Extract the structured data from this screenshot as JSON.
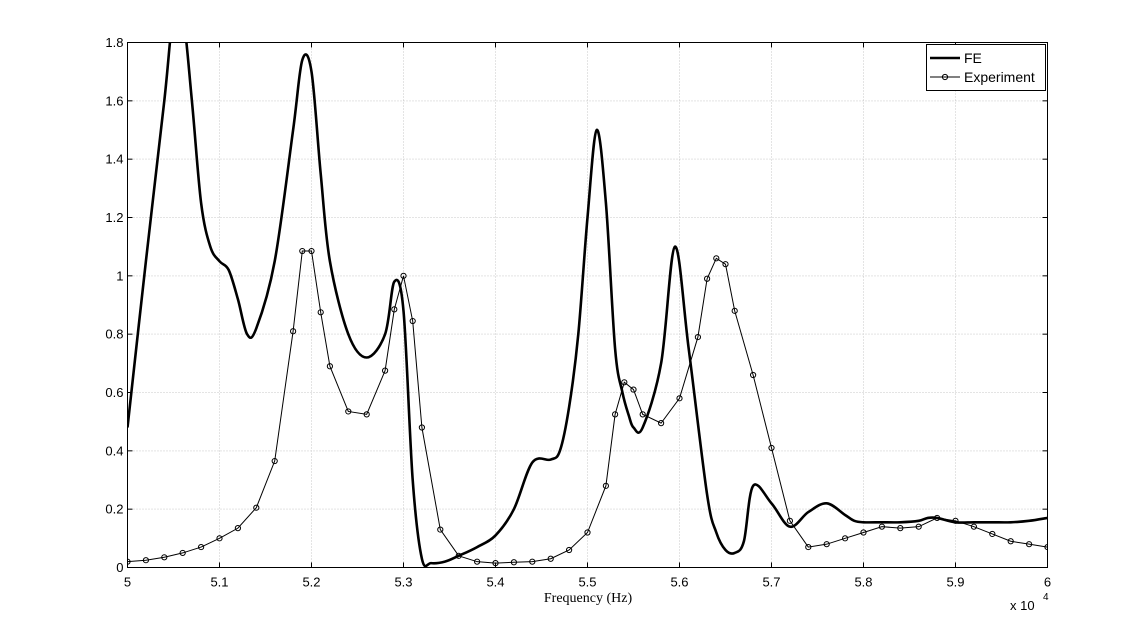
{
  "chart_data": {
    "type": "line",
    "title": "",
    "xlabel": "Frequency (Hz)",
    "ylabel": "",
    "x_multiplier_label": "x 10",
    "x_multiplier_exponent": "4",
    "xlim": [
      50000,
      60000
    ],
    "ylim": [
      0,
      1.8
    ],
    "grid": true,
    "legend_position": "top-right",
    "x_ticks": [
      50000,
      51000,
      52000,
      53000,
      54000,
      55000,
      56000,
      57000,
      58000,
      59000,
      60000
    ],
    "x_tick_labels": [
      "5",
      "5.1",
      "5.2",
      "5.3",
      "5.4",
      "5.5",
      "5.6",
      "5.7",
      "5.8",
      "5.9",
      "6"
    ],
    "y_ticks": [
      0,
      0.2,
      0.4,
      0.6,
      0.8,
      1,
      1.2,
      1.4,
      1.6,
      1.8
    ],
    "y_tick_labels": [
      "0",
      "0.2",
      "0.4",
      "0.6",
      "0.8",
      "1",
      "1.2",
      "1.4",
      "1.6",
      "1.8"
    ],
    "series": [
      {
        "name": "FE",
        "style": "thick-line",
        "color": "#000000",
        "x": [
          50000,
          50200,
          50400,
          50500,
          50600,
          50700,
          50800,
          50900,
          51000,
          51100,
          51200,
          51300,
          51400,
          51600,
          51800,
          51900,
          52000,
          52100,
          52200,
          52400,
          52600,
          52800,
          52900,
          53000,
          53100,
          53200,
          53300,
          53450,
          53600,
          53800,
          54000,
          54200,
          54400,
          54600,
          54700,
          54800,
          54900,
          55000,
          55100,
          55200,
          55300,
          55380,
          55450,
          55500,
          55600,
          55800,
          55950,
          56100,
          56300,
          56400,
          56500,
          56600,
          56700,
          56800,
          57000,
          57200,
          57400,
          57600,
          57800,
          57900,
          58000,
          58200,
          58400,
          58600,
          58700,
          58800,
          59000,
          59200,
          59400,
          59600,
          59800,
          60000
        ],
        "y": [
          0.48,
          1.05,
          1.6,
          1.9,
          1.9,
          1.6,
          1.25,
          1.1,
          1.05,
          1.02,
          0.92,
          0.8,
          0.82,
          1.05,
          1.5,
          1.74,
          1.7,
          1.35,
          1.05,
          0.8,
          0.72,
          0.8,
          0.98,
          0.88,
          0.3,
          0.03,
          0.015,
          0.02,
          0.04,
          0.07,
          0.11,
          0.2,
          0.36,
          0.37,
          0.4,
          0.55,
          0.8,
          1.2,
          1.5,
          1.25,
          0.75,
          0.6,
          0.52,
          0.48,
          0.48,
          0.7,
          1.1,
          0.75,
          0.25,
          0.12,
          0.06,
          0.05,
          0.09,
          0.28,
          0.22,
          0.14,
          0.19,
          0.22,
          0.18,
          0.16,
          0.155,
          0.155,
          0.155,
          0.16,
          0.17,
          0.17,
          0.155,
          0.155,
          0.155,
          0.155,
          0.16,
          0.17
        ]
      },
      {
        "name": "Experiment",
        "style": "thin-line-circle-markers",
        "color": "#000000",
        "x": [
          50000,
          50200,
          50400,
          50600,
          50800,
          51000,
          51200,
          51400,
          51600,
          51800,
          51900,
          52000,
          52100,
          52200,
          52400,
          52600,
          52800,
          52900,
          53000,
          53100,
          53200,
          53400,
          53600,
          53800,
          54000,
          54200,
          54400,
          54600,
          54800,
          55000,
          55200,
          55300,
          55400,
          55500,
          55600,
          55800,
          56000,
          56200,
          56300,
          56400,
          56500,
          56600,
          56800,
          57000,
          57200,
          57400,
          57600,
          57800,
          58000,
          58200,
          58400,
          58600,
          58800,
          59000,
          59200,
          59400,
          59600,
          59800,
          60000
        ],
        "y": [
          0.02,
          0.025,
          0.035,
          0.05,
          0.07,
          0.1,
          0.135,
          0.205,
          0.365,
          0.81,
          1.085,
          1.085,
          0.875,
          0.69,
          0.535,
          0.525,
          0.675,
          0.885,
          1.0,
          0.845,
          0.48,
          0.13,
          0.04,
          0.02,
          0.015,
          0.018,
          0.02,
          0.03,
          0.06,
          0.12,
          0.28,
          0.525,
          0.635,
          0.61,
          0.525,
          0.495,
          0.58,
          0.79,
          0.99,
          1.06,
          1.04,
          0.88,
          0.66,
          0.41,
          0.16,
          0.07,
          0.08,
          0.1,
          0.12,
          0.14,
          0.135,
          0.14,
          0.17,
          0.16,
          0.14,
          0.115,
          0.09,
          0.08,
          0.07
        ]
      }
    ]
  }
}
